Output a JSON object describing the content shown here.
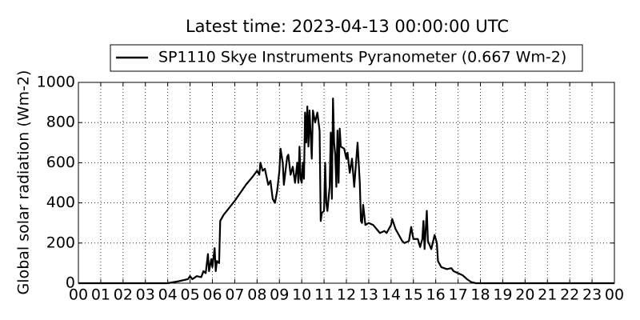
{
  "chart_data": {
    "type": "line",
    "title": "Latest time: 2023-04-13 00:00:00 UTC",
    "y_label": "Global solar radiation (Wm-2)",
    "xlim": [
      0,
      24
    ],
    "ylim": [
      0,
      1000
    ],
    "xticks": [
      {
        "value": 0,
        "label": "00"
      },
      {
        "value": 1,
        "label": "01"
      },
      {
        "value": 2,
        "label": "02"
      },
      {
        "value": 3,
        "label": "03"
      },
      {
        "value": 4,
        "label": "04"
      },
      {
        "value": 5,
        "label": "05"
      },
      {
        "value": 6,
        "label": "06"
      },
      {
        "value": 7,
        "label": "07"
      },
      {
        "value": 8,
        "label": "08"
      },
      {
        "value": 9,
        "label": "09"
      },
      {
        "value": 10,
        "label": "10"
      },
      {
        "value": 11,
        "label": "11"
      },
      {
        "value": 12,
        "label": "12"
      },
      {
        "value": 13,
        "label": "13"
      },
      {
        "value": 14,
        "label": "14"
      },
      {
        "value": 15,
        "label": "15"
      },
      {
        "value": 16,
        "label": "16"
      },
      {
        "value": 17,
        "label": "17"
      },
      {
        "value": 18,
        "label": "18"
      },
      {
        "value": 19,
        "label": "19"
      },
      {
        "value": 20,
        "label": "20"
      },
      {
        "value": 21,
        "label": "21"
      },
      {
        "value": 22,
        "label": "22"
      },
      {
        "value": 23,
        "label": "23"
      },
      {
        "value": 24,
        "label": "00"
      }
    ],
    "yticks": [
      0,
      200,
      400,
      600,
      800,
      1000
    ],
    "grid": true,
    "legend": "upper center",
    "x": [
      0,
      4.0,
      4.5,
      4.9,
      5.0,
      5.1,
      5.3,
      5.5,
      5.6,
      5.7,
      5.8,
      5.85,
      5.95,
      6.0,
      6.1,
      6.15,
      6.2,
      6.3,
      6.35,
      6.5,
      7.0,
      7.5,
      7.8,
      8.0,
      8.1,
      8.15,
      8.25,
      8.35,
      8.5,
      8.6,
      8.7,
      8.8,
      8.9,
      9.0,
      9.05,
      9.15,
      9.2,
      9.35,
      9.4,
      9.5,
      9.6,
      9.7,
      9.8,
      9.85,
      9.9,
      9.95,
      10.0,
      10.05,
      10.1,
      10.15,
      10.2,
      10.25,
      10.3,
      10.35,
      10.45,
      10.5,
      10.6,
      10.7,
      10.8,
      10.85,
      10.9,
      11.0,
      11.05,
      11.1,
      11.15,
      11.25,
      11.3,
      11.35,
      11.4,
      11.45,
      11.5,
      11.55,
      11.6,
      11.65,
      11.7,
      11.75,
      11.9,
      12.0,
      12.05,
      12.15,
      12.25,
      12.35,
      12.5,
      12.6,
      12.65,
      12.7,
      12.75,
      12.85,
      13.0,
      13.2,
      13.5,
      13.7,
      13.8,
      14.0,
      14.05,
      14.2,
      14.3,
      14.5,
      14.6,
      14.8,
      14.9,
      15.0,
      15.2,
      15.3,
      15.4,
      15.45,
      15.5,
      15.6,
      15.65,
      15.8,
      15.95,
      16.05,
      16.1,
      16.25,
      16.5,
      16.7,
      16.8,
      17.0,
      17.2,
      17.4,
      17.6,
      17.8,
      24
    ],
    "series": [
      {
        "name": "SP1110 Skye Instruments Pyranometer (0.667 Wm-2)",
        "color": "#000000",
        "values": [
          0,
          0,
          10,
          20,
          35,
          20,
          35,
          30,
          60,
          50,
          145,
          60,
          120,
          80,
          175,
          60,
          110,
          100,
          310,
          340,
          410,
          490,
          530,
          560,
          540,
          600,
          560,
          570,
          490,
          510,
          420,
          400,
          460,
          560,
          670,
          600,
          490,
          630,
          640,
          540,
          580,
          500,
          600,
          500,
          680,
          520,
          500,
          600,
          520,
          850,
          700,
          880,
          680,
          860,
          620,
          860,
          800,
          850,
          760,
          310,
          350,
          360,
          600,
          400,
          360,
          480,
          750,
          420,
          920,
          700,
          640,
          480,
          760,
          500,
          770,
          680,
          670,
          620,
          650,
          550,
          620,
          480,
          700,
          500,
          310,
          300,
          390,
          290,
          300,
          290,
          250,
          260,
          250,
          290,
          320,
          270,
          250,
          210,
          200,
          210,
          280,
          220,
          220,
          180,
          220,
          310,
          170,
          360,
          210,
          170,
          240,
          200,
          110,
          80,
          70,
          75,
          60,
          50,
          40,
          20,
          5,
          0,
          0
        ]
      }
    ]
  }
}
